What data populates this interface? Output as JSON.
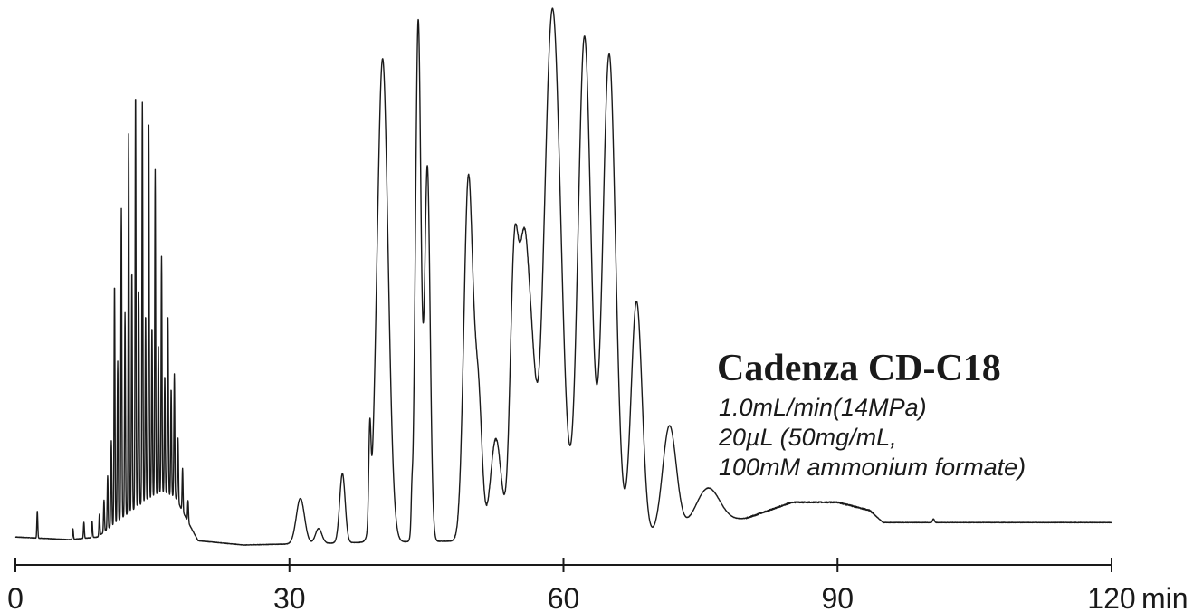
{
  "chart_data": {
    "type": "line",
    "title": "Cadenza CD-C18",
    "annotations": [
      "1.0mL/min(14MPa)",
      "20µL (50mg/mL,",
      "100mM ammonium formate)"
    ],
    "x_unit": "min",
    "xlim": [
      0,
      120
    ],
    "x_ticks": [
      {
        "value": 0,
        "label": "0"
      },
      {
        "value": 30,
        "label": "30"
      },
      {
        "value": 60,
        "label": "60"
      },
      {
        "value": 90,
        "label": "90"
      },
      {
        "value": 120,
        "label": "120"
      }
    ],
    "y_axis": "none",
    "ylim": [
      0,
      100
    ],
    "grid": false,
    "line_color": "#1a1a1a",
    "baseline": [
      {
        "x": 0,
        "y": 1.5
      },
      {
        "x": 6,
        "y": 1.0
      },
      {
        "x": 9,
        "y": 1.5
      },
      {
        "x": 10.5,
        "y": 3.5
      },
      {
        "x": 12,
        "y": 5.5
      },
      {
        "x": 14,
        "y": 8.0
      },
      {
        "x": 16,
        "y": 10.0
      },
      {
        "x": 17.5,
        "y": 9.0
      },
      {
        "x": 19,
        "y": 4.0
      },
      {
        "x": 20,
        "y": 0.8
      },
      {
        "x": 25,
        "y": 0
      },
      {
        "x": 38.5,
        "y": 0.5
      },
      {
        "x": 60,
        "y": 1.0
      },
      {
        "x": 70,
        "y": 1.8
      },
      {
        "x": 80,
        "y": 5.0
      },
      {
        "x": 85,
        "y": 8.0
      },
      {
        "x": 90,
        "y": 8.0
      },
      {
        "x": 93.5,
        "y": 6.5
      },
      {
        "x": 95,
        "y": 4.2
      },
      {
        "x": 120,
        "y": 4.2
      }
    ],
    "peaks": [
      {
        "t": 2.4,
        "h": 5,
        "w": 0.05
      },
      {
        "t": 6.3,
        "h": 2,
        "w": 0.05
      },
      {
        "t": 7.5,
        "h": 3,
        "w": 0.05
      },
      {
        "t": 8.4,
        "h": 3,
        "w": 0.05
      },
      {
        "t": 9.2,
        "h": 4,
        "w": 0.05
      },
      {
        "t": 9.7,
        "h": 6,
        "w": 0.05
      },
      {
        "t": 10.1,
        "h": 10,
        "w": 0.05
      },
      {
        "t": 10.5,
        "h": 16,
        "w": 0.05
      },
      {
        "t": 10.85,
        "h": 45,
        "w": 0.05
      },
      {
        "t": 11.2,
        "h": 30,
        "w": 0.05
      },
      {
        "t": 11.6,
        "h": 58,
        "w": 0.05
      },
      {
        "t": 12.0,
        "h": 38,
        "w": 0.05
      },
      {
        "t": 12.4,
        "h": 71,
        "w": 0.05
      },
      {
        "t": 12.75,
        "h": 45,
        "w": 0.05
      },
      {
        "t": 13.15,
        "h": 78,
        "w": 0.05
      },
      {
        "t": 13.5,
        "h": 40,
        "w": 0.05
      },
      {
        "t": 13.9,
        "h": 75,
        "w": 0.05
      },
      {
        "t": 14.25,
        "h": 35,
        "w": 0.05
      },
      {
        "t": 14.6,
        "h": 70,
        "w": 0.05
      },
      {
        "t": 14.95,
        "h": 32,
        "w": 0.05
      },
      {
        "t": 15.3,
        "h": 61,
        "w": 0.05
      },
      {
        "t": 15.65,
        "h": 28,
        "w": 0.05
      },
      {
        "t": 16.0,
        "h": 44,
        "w": 0.05
      },
      {
        "t": 16.35,
        "h": 22,
        "w": 0.05
      },
      {
        "t": 16.7,
        "h": 33,
        "w": 0.05
      },
      {
        "t": 17.05,
        "h": 20,
        "w": 0.05
      },
      {
        "t": 17.4,
        "h": 23,
        "w": 0.05
      },
      {
        "t": 17.8,
        "h": 12,
        "w": 0.05
      },
      {
        "t": 18.3,
        "h": 8,
        "w": 0.05
      },
      {
        "t": 18.9,
        "h": 4,
        "w": 0.05
      },
      {
        "t": 31.2,
        "h": 8.5,
        "w": 0.45
      },
      {
        "t": 33.2,
        "h": 2.8,
        "w": 0.35
      },
      {
        "t": 35.8,
        "h": 13,
        "w": 0.3
      },
      {
        "t": 38.8,
        "h": 17,
        "w": 0.12
      },
      {
        "t": 40.2,
        "h": 90.5,
        "w": 0.6
      },
      {
        "t": 43.4,
        "h": 5,
        "w": 0.08
      },
      {
        "t": 44.1,
        "h": 97.5,
        "w": 0.3
      },
      {
        "t": 45.1,
        "h": 70,
        "w": 0.3
      },
      {
        "t": 49.6,
        "h": 68,
        "w": 0.5
      },
      {
        "t": 50.7,
        "h": 25,
        "w": 0.4
      },
      {
        "t": 52.6,
        "h": 19,
        "w": 0.6
      },
      {
        "t": 54.6,
        "h": 50,
        "w": 0.45
      },
      {
        "t": 55.7,
        "h": 53,
        "w": 0.55
      },
      {
        "t": 56.6,
        "h": 20,
        "w": 0.45
      },
      {
        "t": 58.8,
        "h": 99.5,
        "w": 0.9
      },
      {
        "t": 62.3,
        "h": 94,
        "w": 0.7
      },
      {
        "t": 65.0,
        "h": 90.5,
        "w": 0.7
      },
      {
        "t": 68.0,
        "h": 44,
        "w": 0.6
      },
      {
        "t": 71.6,
        "h": 20,
        "w": 0.75
      },
      {
        "t": 75.8,
        "h": 7,
        "w": 1.3
      },
      {
        "t": 100.5,
        "h": 0.7,
        "w": 0.1
      }
    ]
  }
}
